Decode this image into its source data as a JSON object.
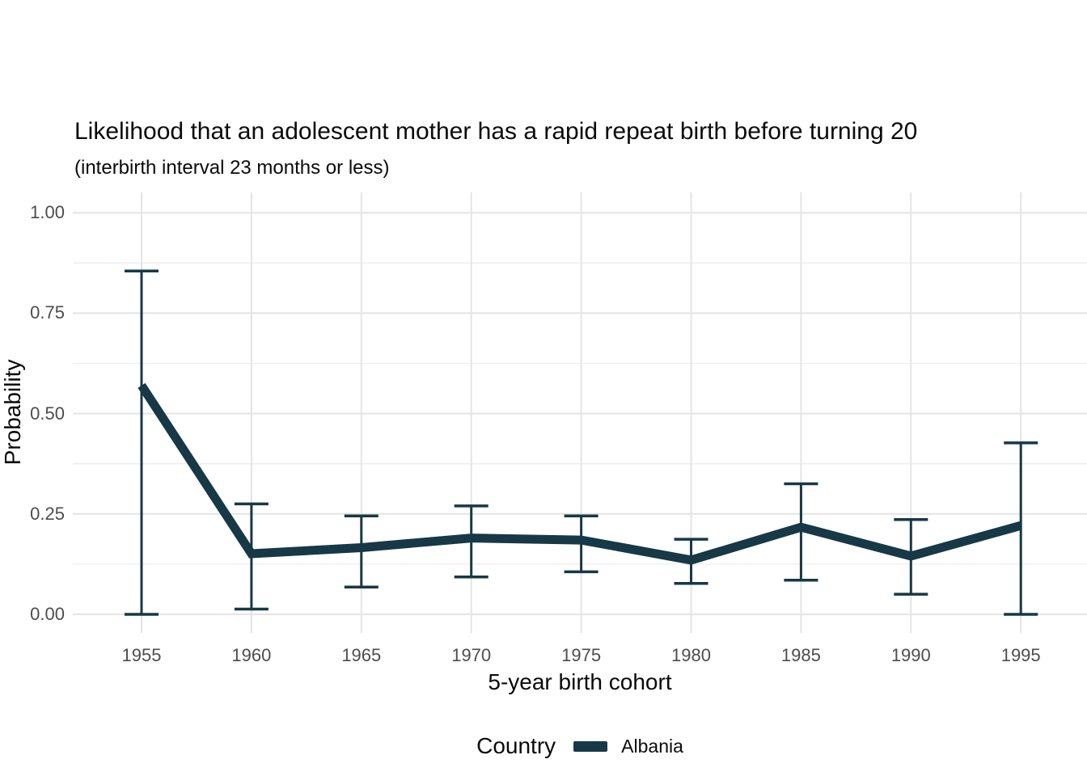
{
  "title": "Likelihood that an adolescent mother has a rapid repeat birth before turning 20",
  "subtitle": "(interbirth interval 23 months or less)",
  "chart_data": {
    "type": "line",
    "title": "Likelihood that an adolescent mother has a rapid repeat birth before turning 20",
    "subtitle": "(interbirth interval 23 months or less)",
    "xlabel": "5-year birth cohort",
    "ylabel": "Probability",
    "x": [
      1955,
      1960,
      1965,
      1970,
      1975,
      1980,
      1985,
      1990,
      1995
    ],
    "x_ticks": [
      "1955",
      "1960",
      "1965",
      "1970",
      "1975",
      "1980",
      "1985",
      "1990",
      "1995"
    ],
    "y_ticks": [
      "0.00",
      "0.25",
      "0.50",
      "0.75",
      "1.00"
    ],
    "ylim": [
      0,
      1
    ],
    "xlim": [
      1955,
      1995
    ],
    "grid": "major+minor horizontal, major vertical",
    "series": [
      {
        "name": "Albania",
        "color": "#173846",
        "values": [
          0.57,
          0.151,
          0.166,
          0.19,
          0.185,
          0.135,
          0.217,
          0.145,
          0.221
        ],
        "ci_low": [
          0.0,
          0.013,
          0.068,
          0.093,
          0.106,
          0.077,
          0.085,
          0.05,
          0.0
        ],
        "ci_high": [
          0.855,
          0.275,
          0.245,
          0.27,
          0.245,
          0.187,
          0.325,
          0.236,
          0.427
        ]
      }
    ],
    "legend": {
      "position": "bottom",
      "title": "Country",
      "entries": [
        {
          "label": "Albania",
          "color": "#173846"
        }
      ]
    }
  },
  "colors": {
    "background": "#ffffff",
    "grid_major": "#e4e4e4",
    "grid_minor": "#ededed",
    "tick_label": "#4d4d4d",
    "series_albania": "#173846"
  }
}
